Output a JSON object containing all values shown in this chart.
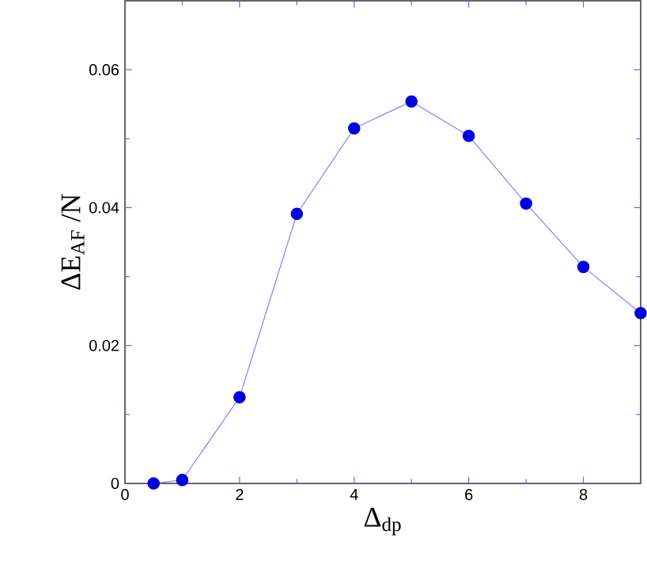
{
  "chart_data": {
    "type": "line",
    "xlabel": "Δ$_{dp}$",
    "ylabel": "ΔE$_{AF}$ /N",
    "x": [
      0.5,
      1,
      2,
      3,
      4,
      5,
      6,
      7,
      8,
      9
    ],
    "series": [
      {
        "color": "#0000dd",
        "values": [
          0,
          0.0005,
          0.0125,
          0.0391,
          0.0515,
          0.0554,
          0.0504,
          0.0406,
          0.0314,
          0.0247
        ]
      }
    ],
    "xlim": [
      0,
      9
    ],
    "ylim": [
      0,
      0.07
    ],
    "xticks": [
      0,
      2,
      4,
      6,
      8
    ],
    "yticks": [
      0,
      0.02,
      0.04,
      0.06
    ],
    "marker": "circle",
    "line_style": "solid",
    "grid": false
  }
}
